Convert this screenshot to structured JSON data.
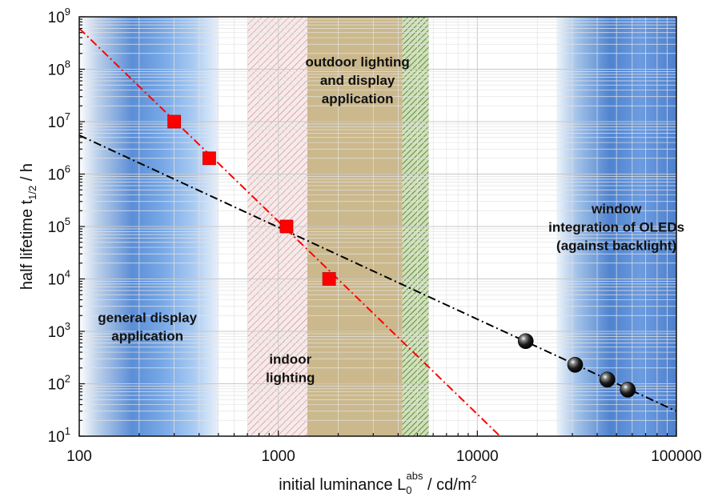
{
  "chart_data": {
    "type": "scatter",
    "x_scale": "log",
    "y_scale": "log",
    "xlim": [
      100,
      100000
    ],
    "ylim": [
      10,
      1000000000
    ],
    "x_ticks": [
      "100",
      "1000",
      "10000",
      "100000"
    ],
    "y_tick_exponents": [
      "1",
      "2",
      "3",
      "4",
      "5",
      "6",
      "7",
      "8",
      "9"
    ],
    "y_tick_base": "10",
    "grid": true,
    "xlabel": {
      "main": "initial luminance L",
      "sub": "0",
      "sup": "abs",
      "unit": " / cd/m",
      "unit_sup": "2"
    },
    "ylabel": {
      "main": "half lifetime t",
      "sub": "1/2",
      "unit": " / h"
    },
    "regions": [
      {
        "name": "general display",
        "x_range": [
          100,
          500
        ],
        "style": "blue gradient",
        "label_lines": [
          "general display",
          "application"
        ]
      },
      {
        "name": "indoor lighting",
        "x_range": [
          700,
          1400
        ],
        "style": "red hatch",
        "label_lines": [
          "indoor",
          "lighting"
        ]
      },
      {
        "name": "outdoor lighting",
        "x_range": [
          1400,
          4200
        ],
        "style": "tan fill",
        "label_lines": [
          "outdoor lighting",
          "and display",
          "application"
        ]
      },
      {
        "name": "outdoor green",
        "x_range": [
          4200,
          5700
        ],
        "style": "green hatch",
        "label_lines": []
      },
      {
        "name": "window integration",
        "x_range": [
          25000,
          100000
        ],
        "style": "blue gradient",
        "label_lines": [
          "window",
          "integration of OLEDs",
          "(against backlight)"
        ]
      }
    ],
    "series": [
      {
        "marker": "square",
        "color": "#ff0000",
        "points": [
          [
            300,
            10000000
          ],
          [
            450,
            2000000
          ],
          [
            1100,
            100000
          ],
          [
            1800,
            10000
          ]
        ]
      },
      {
        "marker": "sphere",
        "color": "#000000",
        "points": [
          [
            17500,
            650
          ],
          [
            31000,
            230
          ],
          [
            45000,
            120
          ],
          [
            57000,
            77
          ]
        ]
      }
    ],
    "fit_lines": [
      {
        "color": "#ff0000",
        "style": "dash-dot",
        "from": [
          100,
          600000000
        ],
        "to": [
          13000,
          10
        ]
      },
      {
        "color": "#000000",
        "style": "dash-dot",
        "from": [
          100,
          5500000
        ],
        "to": [
          100000,
          30
        ]
      }
    ]
  }
}
